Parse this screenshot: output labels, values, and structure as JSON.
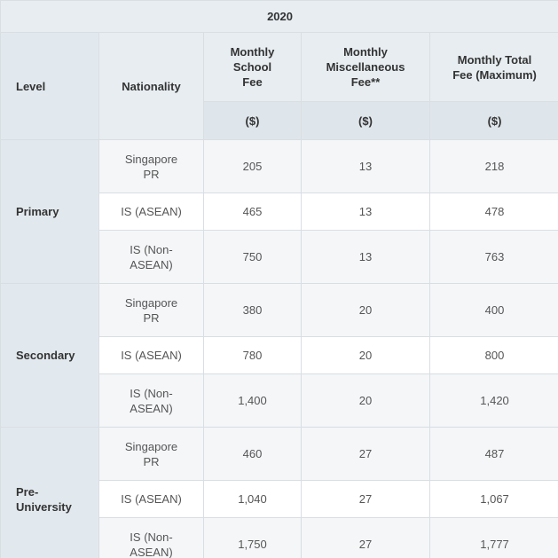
{
  "table": {
    "year": "2020",
    "headers": {
      "level": "Level",
      "nationality": "Nationality",
      "school_fee": "Monthly School Fee",
      "misc_fee": "Monthly Miscellaneous Fee**",
      "total_fee": "Monthly Total Fee (Maximum)"
    },
    "units": {
      "school_fee": "($)",
      "misc_fee": "($)",
      "total_fee": "($)"
    },
    "groups": [
      {
        "level": "Primary",
        "rows": [
          {
            "nationality": "Singapore PR",
            "school_fee": "205",
            "misc_fee": "13",
            "total_fee": "218"
          },
          {
            "nationality": "IS (ASEAN)",
            "school_fee": "465",
            "misc_fee": "13",
            "total_fee": "478"
          },
          {
            "nationality": "IS (Non-ASEAN)",
            "school_fee": "750",
            "misc_fee": "13",
            "total_fee": "763"
          }
        ]
      },
      {
        "level": "Secondary",
        "rows": [
          {
            "nationality": "Singapore PR",
            "school_fee": "380",
            "misc_fee": "20",
            "total_fee": "400"
          },
          {
            "nationality": "IS (ASEAN)",
            "school_fee": "780",
            "misc_fee": "20",
            "total_fee": "800"
          },
          {
            "nationality": "IS (Non-ASEAN)",
            "school_fee": "1,400",
            "misc_fee": "20",
            "total_fee": "1,420"
          }
        ]
      },
      {
        "level": "Pre-University",
        "rows": [
          {
            "nationality": "Singapore PR",
            "school_fee": "460",
            "misc_fee": "27",
            "total_fee": "487"
          },
          {
            "nationality": "IS (ASEAN)",
            "school_fee": "1,040",
            "misc_fee": "27",
            "total_fee": "1,067"
          },
          {
            "nationality": "IS (Non-ASEAN)",
            "school_fee": "1,750",
            "misc_fee": "27",
            "total_fee": "1,777"
          }
        ]
      }
    ]
  }
}
